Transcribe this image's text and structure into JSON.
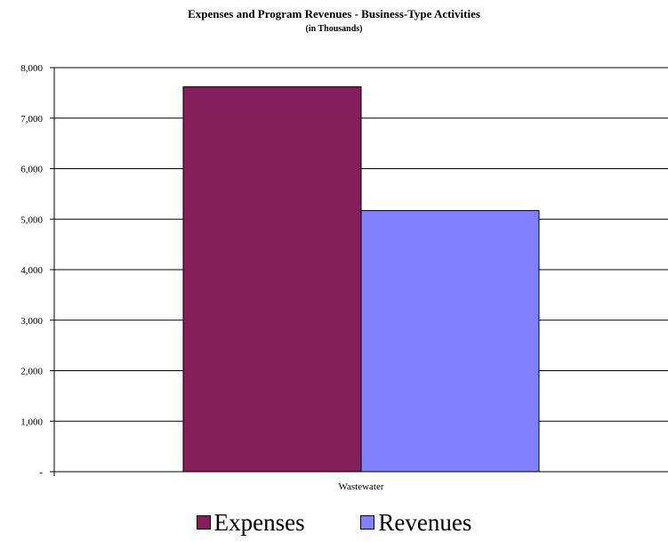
{
  "chart_data": {
    "type": "bar",
    "title": "Expenses and Program  Revenues - Business-Type  Activities",
    "subtitle": "(in Thousands)",
    "categories": [
      "Wastewater"
    ],
    "series": [
      {
        "name": "Expenses",
        "values": [
          7620
        ],
        "color": "#841f5c"
      },
      {
        "name": "Revenues",
        "values": [
          5170
        ],
        "color": "#8080ff"
      }
    ],
    "ylim": [
      0,
      8000
    ],
    "yticks": [
      0,
      1000,
      2000,
      3000,
      4000,
      5000,
      6000,
      7000,
      8000
    ],
    "ytick_labels": [
      "-",
      "1,000",
      "2,000",
      "3,000",
      "4,000",
      "5,000",
      "6,000",
      "7,000",
      "8,000"
    ],
    "grid": true,
    "legend_position": "bottom"
  }
}
